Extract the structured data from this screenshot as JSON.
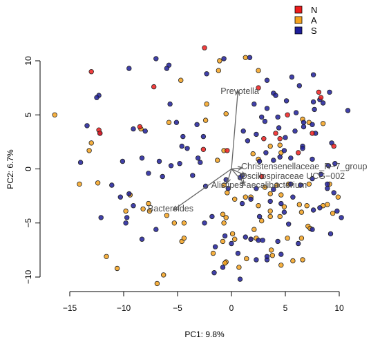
{
  "chart_data": {
    "type": "scatter",
    "title": "",
    "xlabel": "PC1: 9.8%",
    "ylabel": "PC2: 6.7%",
    "xlim": [
      -17,
      12
    ],
    "ylim": [
      -11,
      11
    ],
    "x_ticks": [
      -15,
      -10,
      -5,
      0,
      5,
      10
    ],
    "y_ticks": [
      -10,
      -5,
      0,
      5,
      10
    ],
    "legend": {
      "placement": "top-right",
      "entries": [
        {
          "name": "N",
          "color": "#ee1c1c"
        },
        {
          "name": "A",
          "color": "#f5a21e"
        },
        {
          "name": "S",
          "color": "#1e1e9a"
        }
      ]
    },
    "series": [
      {
        "name": "N",
        "color": "#ee1c1c",
        "points": [
          [
            -2.5,
            11.2
          ],
          [
            -13,
            9
          ],
          [
            -7.2,
            7.6
          ],
          [
            2.5,
            7.5
          ],
          [
            8.1,
            7.1
          ],
          [
            8.3,
            6.6
          ],
          [
            -12.3,
            3.6
          ],
          [
            -12.2,
            3.3
          ],
          [
            -8.5,
            3.9
          ],
          [
            5.2,
            5
          ],
          [
            7.5,
            3.3
          ],
          [
            4.1,
            3.3
          ],
          [
            4.5,
            2.8
          ],
          [
            9.5,
            2.1
          ],
          [
            6.2,
            1.5
          ],
          [
            -2.6,
            1.8
          ],
          [
            -0.4,
            1.7
          ],
          [
            3,
            2.8
          ],
          [
            2.8,
            -0.7
          ]
        ]
      },
      {
        "name": "A",
        "color": "#f5a21e",
        "points": [
          [
            -16.4,
            5
          ],
          [
            -13,
            2.4
          ],
          [
            -13.2,
            1.7
          ],
          [
            -14.1,
            -1.4
          ],
          [
            -10.6,
            -9.2
          ],
          [
            -11.6,
            -8.1
          ],
          [
            -8.4,
            3.7
          ],
          [
            -4.7,
            8.2
          ],
          [
            -2.3,
            6
          ],
          [
            -2.4,
            4.5
          ],
          [
            -5.8,
            4.3
          ],
          [
            -0.7,
            1.7
          ],
          [
            -1.3,
            0.8
          ],
          [
            -0.7,
            -1.5
          ],
          [
            -0.4,
            -2.2
          ],
          [
            -9.4,
            -2.4
          ],
          [
            -4.4,
            -5
          ],
          [
            -4.6,
            -6.7
          ],
          [
            -6.3,
            -9.8
          ],
          [
            -6.9,
            -10.6
          ],
          [
            -9.8,
            -3.9
          ],
          [
            -7.7,
            -3.2
          ],
          [
            -6,
            -4.3
          ],
          [
            -5.3,
            -5
          ],
          [
            -1.7,
            -7.8
          ],
          [
            -0.5,
            -8.6
          ],
          [
            -0.6,
            -8.7
          ],
          [
            -0.8,
            -4.2
          ],
          [
            -4.4,
            -6.4
          ],
          [
            -7.6,
            -3.9
          ],
          [
            -8.2,
            -3.7
          ],
          [
            -12.4,
            -1.3
          ],
          [
            -0.7,
            -5
          ],
          [
            0.1,
            -6
          ],
          [
            0.7,
            -9.1
          ],
          [
            1.4,
            -8.3
          ],
          [
            1.8,
            -6.5
          ],
          [
            2.3,
            -6.4
          ],
          [
            3.8,
            -8
          ],
          [
            3.7,
            -7.5
          ],
          [
            4.6,
            -8.9
          ],
          [
            5.7,
            -8.5
          ],
          [
            6.6,
            -8.4
          ],
          [
            5.2,
            -6.4
          ],
          [
            6.5,
            -6.4
          ],
          [
            7.1,
            -5.3
          ],
          [
            8.5,
            -3.4
          ],
          [
            9.4,
            -4.1
          ],
          [
            9.9,
            -2.6
          ],
          [
            7.3,
            -5.5
          ],
          [
            4.5,
            -4.4
          ],
          [
            4.9,
            -3.5
          ],
          [
            8.9,
            -3.3
          ],
          [
            6.5,
            -4
          ],
          [
            2.5,
            -3.4
          ],
          [
            1.8,
            -2.6
          ],
          [
            3.1,
            -1.7
          ],
          [
            3.6,
            -2.3
          ],
          [
            4.6,
            -2.4
          ],
          [
            -1.1,
            10
          ],
          [
            -1.2,
            9.1
          ],
          [
            1.3,
            10.3
          ],
          [
            -0.5,
            5.1
          ],
          [
            2.5,
            9.1
          ],
          [
            6.6,
            4.6
          ],
          [
            7.2,
            4.3
          ],
          [
            8.5,
            4.2
          ],
          [
            4.5,
            2.2
          ],
          [
            4.6,
            1.5
          ],
          [
            3.6,
            2.1
          ],
          [
            2,
            1.4
          ],
          [
            2.5,
            0.9
          ],
          [
            4.2,
            -1.5
          ],
          [
            5.3,
            -1.4
          ],
          [
            6.3,
            -3.3
          ],
          [
            7,
            -3.4
          ],
          [
            7.2,
            -1.4
          ],
          [
            9.1,
            -1.4
          ],
          [
            0.3,
            -2.8
          ],
          [
            1.3,
            -2.6
          ],
          [
            2.8,
            -4.8
          ],
          [
            3.6,
            -4.4
          ],
          [
            3.6,
            -3.9
          ],
          [
            -0.8,
            -6.7
          ],
          [
            2.1,
            -5.6
          ],
          [
            0.3,
            -6.5
          ],
          [
            -0.5,
            -4.5
          ]
        ]
      },
      {
        "name": "S",
        "color": "#1e1e9a",
        "points": [
          [
            -9.5,
            9.3
          ],
          [
            -5.8,
            9.6
          ],
          [
            -7,
            10.2
          ],
          [
            -6,
            9.3
          ],
          [
            -12.3,
            6.8
          ],
          [
            -12.5,
            6.6
          ],
          [
            -13.4,
            4
          ],
          [
            -12.2,
            3.3
          ],
          [
            -14,
            0.6
          ],
          [
            -9.1,
            3.7
          ],
          [
            -5.7,
            6
          ],
          [
            -5.1,
            4.3
          ],
          [
            -3.2,
            4.1
          ],
          [
            -2.3,
            8.8
          ],
          [
            -0.7,
            10.2
          ],
          [
            -8,
            3.5
          ],
          [
            -8.3,
            1
          ],
          [
            -4.5,
            3
          ],
          [
            -2.6,
            3
          ],
          [
            -3.1,
            1
          ],
          [
            -2.9,
            0.6
          ],
          [
            -3.6,
            -0.6
          ],
          [
            -2.4,
            -1.6
          ],
          [
            -4.8,
            0.5
          ],
          [
            -4.6,
            2.1
          ],
          [
            -4.1,
            1.9
          ],
          [
            -6.7,
            0.7
          ],
          [
            -7.7,
            -0.4
          ],
          [
            -6.4,
            -0.7
          ],
          [
            -5.6,
            0.3
          ],
          [
            -10.1,
            0.7
          ],
          [
            -10.3,
            -2.6
          ],
          [
            -9.5,
            -2.3
          ],
          [
            -9.1,
            -3.4
          ],
          [
            -9.7,
            -4.5
          ],
          [
            -11.1,
            -1.5
          ],
          [
            -12.1,
            -4.5
          ],
          [
            -9.8,
            -5
          ],
          [
            -8.3,
            -6.5
          ],
          [
            -7,
            -5.6
          ],
          [
            -2.5,
            -5
          ],
          [
            -1.8,
            -4.4
          ],
          [
            -0.6,
            -6.2
          ],
          [
            0,
            -6.9
          ],
          [
            0.6,
            -7.8
          ],
          [
            1.3,
            -6.3
          ],
          [
            1.8,
            -6.5
          ],
          [
            2.5,
            -6.6
          ],
          [
            2.9,
            -6.6
          ],
          [
            3.3,
            -8.4
          ],
          [
            2.3,
            -8.4
          ],
          [
            -1.5,
            -7.2
          ],
          [
            -0.8,
            -9.1
          ],
          [
            -1.6,
            -9.6
          ],
          [
            0.8,
            -10.2
          ],
          [
            3.3,
            -8.1
          ],
          [
            4.3,
            -6.7
          ],
          [
            4.6,
            -7.9
          ],
          [
            6.2,
            -6.9
          ],
          [
            7.6,
            -3.8
          ],
          [
            8.2,
            -3.6
          ],
          [
            9.5,
            -2.2
          ],
          [
            9.8,
            -3.9
          ],
          [
            10.2,
            -4.5
          ],
          [
            9.2,
            -6
          ],
          [
            7.5,
            -5.6
          ],
          [
            5.3,
            -5.1
          ],
          [
            4.9,
            -4
          ],
          [
            2.6,
            -4.4
          ],
          [
            1,
            -3.2
          ],
          [
            1.8,
            -2.8
          ],
          [
            3.6,
            -3
          ],
          [
            4.6,
            -3.2
          ],
          [
            5.7,
            -2.6
          ],
          [
            6.4,
            -1.5
          ],
          [
            7.5,
            -0.9
          ],
          [
            8.3,
            -0.5
          ],
          [
            8.9,
            -1.8
          ],
          [
            9,
            0.3
          ],
          [
            9.6,
            0.5
          ],
          [
            7.5,
            0.9
          ],
          [
            6.6,
            2.1
          ],
          [
            5,
            2.9
          ],
          [
            4.4,
            3.8
          ],
          [
            3.1,
            4.4
          ],
          [
            2.3,
            3.2
          ],
          [
            1.1,
            3.5
          ],
          [
            1.5,
            2.6
          ],
          [
            2.6,
            0.7
          ],
          [
            3.9,
            0.8
          ],
          [
            4.9,
            1.7
          ],
          [
            5.9,
            3.5
          ],
          [
            6.7,
            3.9
          ],
          [
            7.5,
            4.1
          ],
          [
            7.7,
            5.5
          ],
          [
            8.2,
            6.4
          ],
          [
            8.5,
            6.1
          ],
          [
            9.1,
            7.1
          ],
          [
            10.8,
            5.4
          ],
          [
            6,
            5.2
          ],
          [
            5.1,
            6.3
          ],
          [
            4.3,
            4.8
          ],
          [
            3.9,
            7
          ],
          [
            3.3,
            5.6
          ],
          [
            2.8,
            4.8
          ],
          [
            2.1,
            6
          ],
          [
            5.6,
            8.5
          ],
          [
            6.3,
            7.7
          ],
          [
            7.6,
            8.7
          ],
          [
            7.6,
            6.2
          ],
          [
            1.7,
            10.3
          ],
          [
            3.3,
            8.2
          ],
          [
            4.1,
            6.8
          ],
          [
            6.7,
            4.3
          ],
          [
            7.8,
            3.3
          ],
          [
            9.3,
            2.4
          ],
          [
            6.6,
            1.9
          ],
          [
            5.5,
            1
          ],
          [
            4.5,
            1.1
          ],
          [
            3.2,
            1.5
          ],
          [
            1,
            -0.6
          ],
          [
            0.8,
            -0.8
          ],
          [
            2.3,
            -1.8
          ],
          [
            3.9,
            -1.9
          ],
          [
            5.5,
            -1.4
          ],
          [
            8.9,
            -1.4
          ],
          [
            -0.5,
            -1
          ],
          [
            -0.3,
            -1.8
          ]
        ]
      }
    ],
    "vectors": [
      {
        "label": "Prevotella",
        "x": 0.6,
        "y": 7.2
      },
      {
        "label": "Christensenellaceae_R−7_group",
        "x": 1.0,
        "y": 0.1
      },
      {
        "label": "Oscillospiraceae UCG−002",
        "x": 1.3,
        "y": -0.6
      },
      {
        "label": "Faecalibacterium",
        "x": 1.2,
        "y": -1.4
      },
      {
        "label": "Alistipes",
        "x": -0.4,
        "y": -1.3
      },
      {
        "label": "Bacteroides",
        "x": -5.4,
        "y": -3.8
      }
    ]
  }
}
